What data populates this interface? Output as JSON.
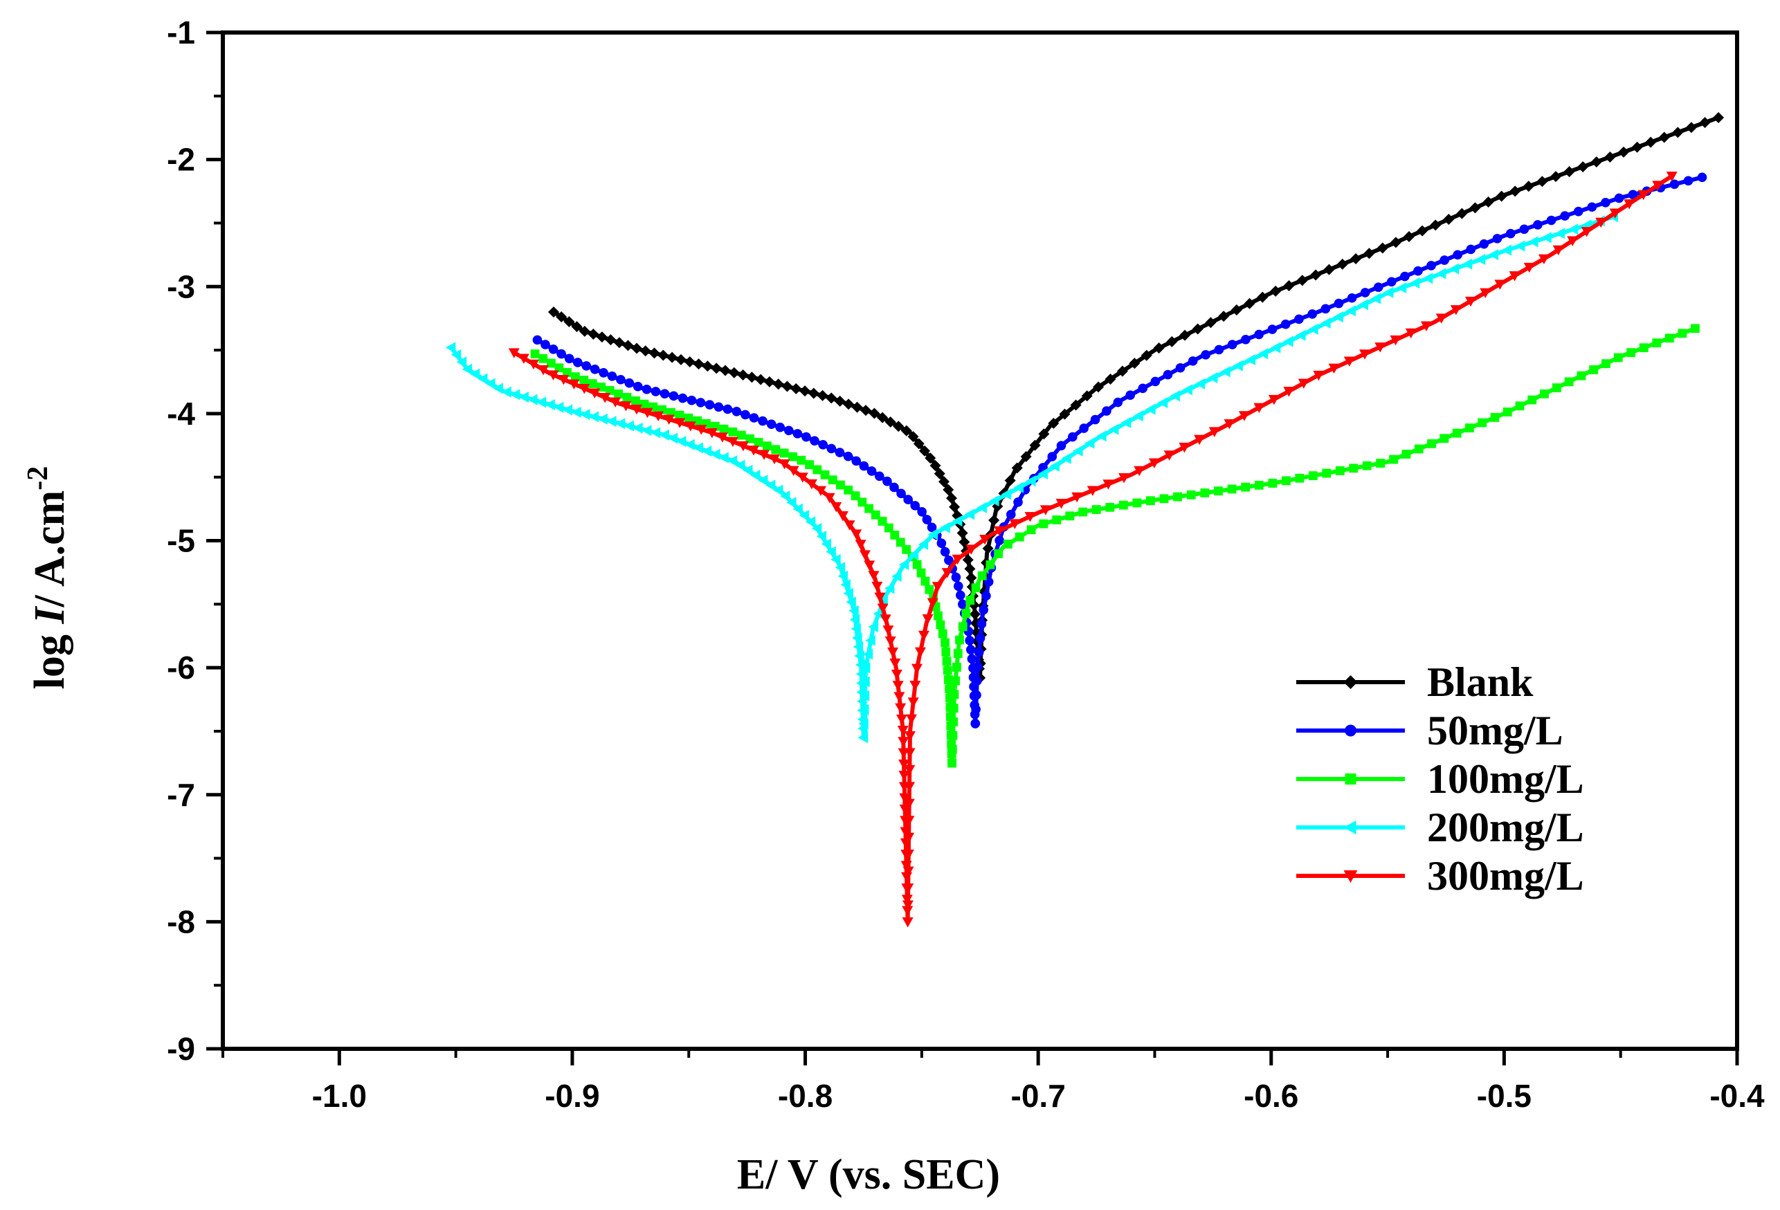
{
  "chart_data": {
    "type": "line",
    "title": "",
    "xlabel": "E/ V (vs. SEC)",
    "ylabel_parts": {
      "prefix": "log ",
      "italic": "I",
      "suffix": "/ A.cm",
      "superscript": "-2"
    },
    "xlim": [
      -1.05,
      -0.4
    ],
    "ylim": [
      -9,
      -1
    ],
    "xticks": [
      -1.0,
      -0.9,
      -0.8,
      -0.7,
      -0.6,
      -0.5,
      -0.4
    ],
    "xtick_labels": [
      "-1.0",
      "-0.9",
      "-0.8",
      "-0.7",
      "-0.6",
      "-0.5",
      "-0.4"
    ],
    "yticks": [
      -9,
      -8,
      -7,
      -6,
      -5,
      -4,
      -3,
      -2,
      -1
    ],
    "ytick_labels": [
      "-9",
      "-8",
      "-7",
      "-6",
      "-5",
      "-4",
      "-3",
      "-2",
      "-1"
    ],
    "legend_position": "bottom-right",
    "series": [
      {
        "name": "Blank",
        "color": "#000000",
        "marker": "diamond",
        "cathodic": [
          [
            -0.908,
            -3.2
          ],
          [
            -0.895,
            -3.35
          ],
          [
            -0.87,
            -3.5
          ],
          [
            -0.83,
            -3.68
          ],
          [
            -0.79,
            -3.87
          ],
          [
            -0.77,
            -4.0
          ],
          [
            -0.755,
            -4.15
          ],
          [
            -0.745,
            -4.38
          ],
          [
            -0.738,
            -4.62
          ],
          [
            -0.733,
            -4.9
          ],
          [
            -0.729,
            -5.25
          ],
          [
            -0.727,
            -5.6
          ],
          [
            -0.725,
            -6.08
          ]
        ],
        "anodic": [
          [
            -0.725,
            -6.08
          ],
          [
            -0.724,
            -5.6
          ],
          [
            -0.722,
            -5.1
          ],
          [
            -0.718,
            -4.75
          ],
          [
            -0.71,
            -4.45
          ],
          [
            -0.695,
            -4.1
          ],
          [
            -0.675,
            -3.8
          ],
          [
            -0.65,
            -3.5
          ],
          [
            -0.6,
            -3.05
          ],
          [
            -0.55,
            -2.68
          ],
          [
            -0.5,
            -2.28
          ],
          [
            -0.45,
            -1.95
          ],
          [
            -0.408,
            -1.67
          ]
        ]
      },
      {
        "name": "50mg/L",
        "color": "#0000ff",
        "marker": "circle",
        "cathodic": [
          [
            -0.915,
            -3.42
          ],
          [
            -0.9,
            -3.58
          ],
          [
            -0.87,
            -3.8
          ],
          [
            -0.83,
            -3.98
          ],
          [
            -0.8,
            -4.18
          ],
          [
            -0.78,
            -4.35
          ],
          [
            -0.765,
            -4.53
          ],
          [
            -0.75,
            -4.77
          ],
          [
            -0.742,
            -5.0
          ],
          [
            -0.735,
            -5.3
          ],
          [
            -0.73,
            -5.7
          ],
          [
            -0.728,
            -6.0
          ],
          [
            -0.727,
            -6.44
          ]
        ],
        "anodic": [
          [
            -0.727,
            -6.44
          ],
          [
            -0.726,
            -6.0
          ],
          [
            -0.724,
            -5.6
          ],
          [
            -0.72,
            -5.2
          ],
          [
            -0.715,
            -4.9
          ],
          [
            -0.705,
            -4.58
          ],
          [
            -0.69,
            -4.25
          ],
          [
            -0.665,
            -3.9
          ],
          [
            -0.63,
            -3.55
          ],
          [
            -0.58,
            -3.2
          ],
          [
            -0.5,
            -2.6
          ],
          [
            -0.45,
            -2.3
          ],
          [
            -0.415,
            -2.14
          ]
        ]
      },
      {
        "name": "100mg/L",
        "color": "#00ff00",
        "marker": "square",
        "cathodic": [
          [
            -0.916,
            -3.53
          ],
          [
            -0.9,
            -3.7
          ],
          [
            -0.87,
            -3.92
          ],
          [
            -0.83,
            -4.15
          ],
          [
            -0.8,
            -4.38
          ],
          [
            -0.78,
            -4.62
          ],
          [
            -0.765,
            -4.88
          ],
          [
            -0.753,
            -5.15
          ],
          [
            -0.745,
            -5.45
          ],
          [
            -0.74,
            -5.8
          ],
          [
            -0.738,
            -6.2
          ],
          [
            -0.737,
            -6.75
          ]
        ],
        "anodic": [
          [
            -0.737,
            -6.75
          ],
          [
            -0.736,
            -6.2
          ],
          [
            -0.734,
            -5.8
          ],
          [
            -0.73,
            -5.5
          ],
          [
            -0.725,
            -5.3
          ],
          [
            -0.715,
            -5.05
          ],
          [
            -0.7,
            -4.88
          ],
          [
            -0.68,
            -4.77
          ],
          [
            -0.65,
            -4.68
          ],
          [
            -0.6,
            -4.55
          ],
          [
            -0.55,
            -4.38
          ],
          [
            -0.5,
            -4.0
          ],
          [
            -0.45,
            -3.55
          ],
          [
            -0.418,
            -3.33
          ]
        ]
      },
      {
        "name": "200mg/L",
        "color": "#00ffff",
        "marker": "triangle-left",
        "cathodic": [
          [
            -0.952,
            -3.48
          ],
          [
            -0.945,
            -3.65
          ],
          [
            -0.93,
            -3.82
          ],
          [
            -0.9,
            -3.98
          ],
          [
            -0.86,
            -4.17
          ],
          [
            -0.83,
            -4.38
          ],
          [
            -0.81,
            -4.62
          ],
          [
            -0.795,
            -4.9
          ],
          [
            -0.785,
            -5.2
          ],
          [
            -0.779,
            -5.55
          ],
          [
            -0.776,
            -6.0
          ],
          [
            -0.775,
            -6.55
          ]
        ],
        "anodic": [
          [
            -0.775,
            -6.55
          ],
          [
            -0.774,
            -6.0
          ],
          [
            -0.771,
            -5.7
          ],
          [
            -0.766,
            -5.45
          ],
          [
            -0.758,
            -5.2
          ],
          [
            -0.745,
            -4.95
          ],
          [
            -0.725,
            -4.75
          ],
          [
            -0.7,
            -4.5
          ],
          [
            -0.675,
            -4.2
          ],
          [
            -0.64,
            -3.85
          ],
          [
            -0.6,
            -3.5
          ],
          [
            -0.55,
            -3.05
          ],
          [
            -0.5,
            -2.72
          ],
          [
            -0.453,
            -2.45
          ]
        ]
      },
      {
        "name": "300mg/L",
        "color": "#ff0000",
        "marker": "triangle-down",
        "cathodic": [
          [
            -0.925,
            -3.52
          ],
          [
            -0.91,
            -3.68
          ],
          [
            -0.88,
            -3.92
          ],
          [
            -0.84,
            -4.15
          ],
          [
            -0.81,
            -4.38
          ],
          [
            -0.79,
            -4.65
          ],
          [
            -0.778,
            -4.95
          ],
          [
            -0.77,
            -5.3
          ],
          [
            -0.765,
            -5.65
          ],
          [
            -0.761,
            -6.0
          ],
          [
            -0.758,
            -6.5
          ],
          [
            -0.756,
            -8.0
          ]
        ],
        "anodic": [
          [
            -0.756,
            -8.0
          ],
          [
            -0.755,
            -6.5
          ],
          [
            -0.752,
            -6.0
          ],
          [
            -0.748,
            -5.65
          ],
          [
            -0.743,
            -5.35
          ],
          [
            -0.735,
            -5.15
          ],
          [
            -0.72,
            -4.95
          ],
          [
            -0.7,
            -4.78
          ],
          [
            -0.66,
            -4.48
          ],
          [
            -0.62,
            -4.1
          ],
          [
            -0.58,
            -3.7
          ],
          [
            -0.53,
            -3.28
          ],
          [
            -0.48,
            -2.75
          ],
          [
            -0.428,
            -2.13
          ]
        ]
      }
    ]
  }
}
